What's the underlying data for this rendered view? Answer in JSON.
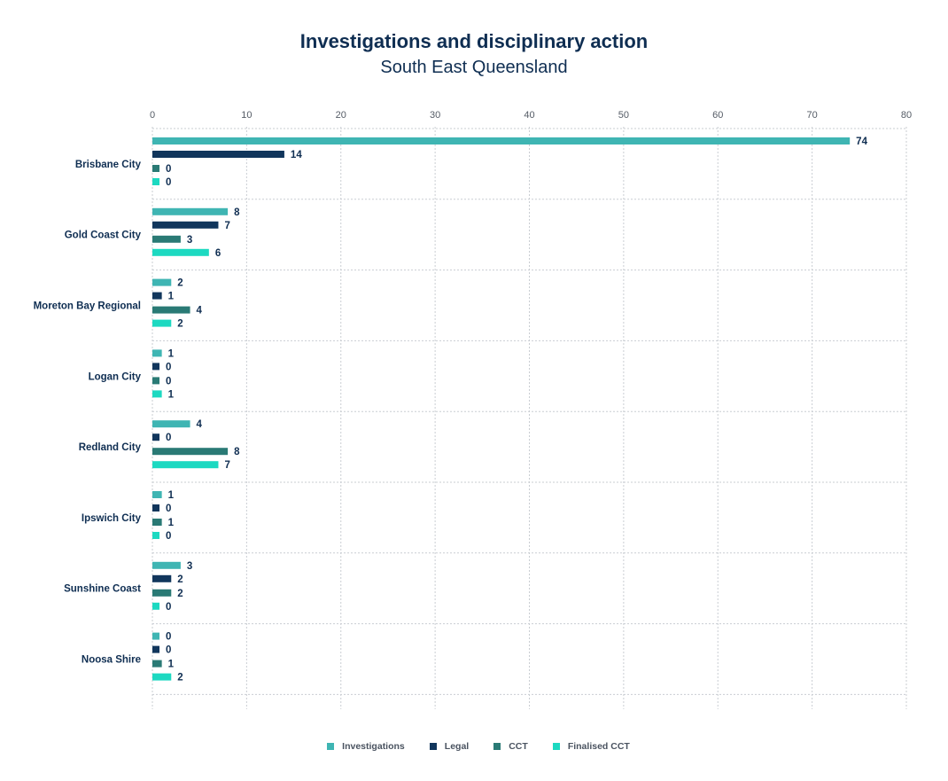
{
  "chart_data": {
    "type": "bar",
    "orientation": "horizontal",
    "title": "Investigations and disciplinary action",
    "subtitle": "South East Queensland",
    "xlabel": "",
    "ylabel": "",
    "xlim": [
      0,
      80
    ],
    "x_ticks": [
      0,
      10,
      20,
      30,
      40,
      50,
      60,
      70,
      80
    ],
    "grid": true,
    "legend_position": "bottom",
    "categories": [
      "Brisbane City",
      "Gold Coast City",
      "Moreton Bay Regional",
      "Logan City",
      "Redland City",
      "Ipswich City",
      "Sunshine Coast",
      "Noosa Shire"
    ],
    "series": [
      {
        "name": "Investigations",
        "color": "#3fb5b3",
        "values": [
          74,
          8,
          2,
          1,
          4,
          1,
          3,
          0
        ]
      },
      {
        "name": "Legal",
        "color": "#11365c",
        "values": [
          14,
          7,
          1,
          0,
          0,
          0,
          2,
          0
        ]
      },
      {
        "name": "CCT",
        "color": "#2a7a75",
        "values": [
          0,
          3,
          4,
          0,
          8,
          1,
          2,
          1
        ]
      },
      {
        "name": "Finalised CCT",
        "color": "#1dd9c1",
        "values": [
          0,
          6,
          2,
          1,
          7,
          0,
          0,
          2
        ]
      }
    ]
  }
}
